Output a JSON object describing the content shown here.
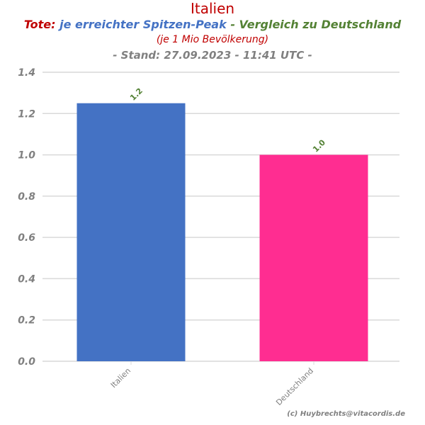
{
  "header": {
    "title": "Italien",
    "line2_part1": "Tote:",
    "line2_part2": "je erreichter Spitzen-Peak",
    "line2_part3": "- Vergleich zu Deutschland",
    "line3": "(je 1 Mio Bevölkerung)",
    "line4": "- Stand: 27.09.2023 - 11:41 UTC -"
  },
  "footer": {
    "copyright": "(c) Huybrechts@vitacordis.de"
  },
  "colors": {
    "title": "#c00000",
    "blue": "#4472c4",
    "green": "#548235",
    "gray": "#808080",
    "bar_italien": "#4472c4",
    "bar_deutschland": "#ff2d91",
    "grid": "#d9d9d9"
  },
  "chart_data": {
    "type": "bar",
    "categories": [
      "Italien",
      "Deutschland"
    ],
    "values": [
      1.25,
      1.0
    ],
    "data_labels": [
      "1.2",
      "1.0"
    ],
    "bar_colors": [
      "#4472c4",
      "#ff2d91"
    ],
    "ylim": [
      0,
      1.4
    ],
    "yticks": [
      "0.0",
      "0.2",
      "0.4",
      "0.6",
      "0.8",
      "1.0",
      "1.2",
      "1.4"
    ],
    "grid": true,
    "xlabel": "",
    "ylabel": ""
  }
}
